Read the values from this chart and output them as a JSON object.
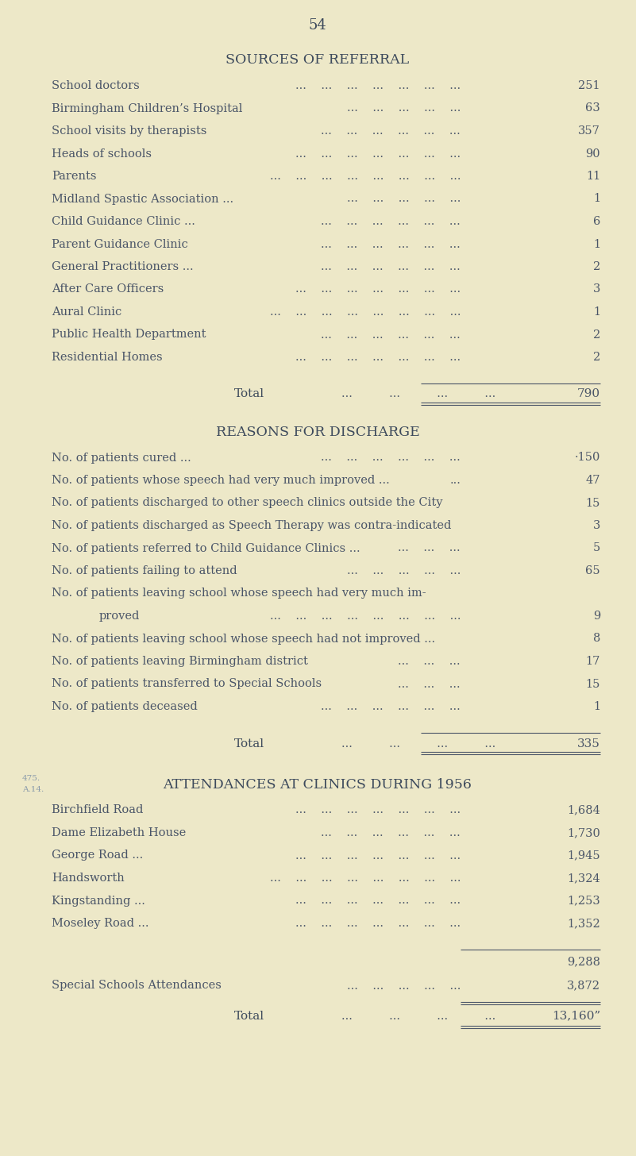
{
  "page_number": "54",
  "bg_color": "#EDE8C8",
  "text_color": "#4a5568",
  "title_color": "#3d4a5c",
  "section1_title": "SOURCES OF REFERRAL",
  "section1_rows": [
    {
      "label": "School doctors",
      "dots": "...    ...    ...    ...    ...    ...    ...",
      "value": "251"
    },
    {
      "label": "Birmingham Children’s Hospital",
      "dots": "...    ...    ...    ...    ...",
      "value": "63"
    },
    {
      "label": "School visits by therapists",
      "dots": "...    ...    ...    ...    ...    ...",
      "value": "357"
    },
    {
      "label": "Heads of schools",
      "dots": "...    ...    ...    ...    ...    ...    ...",
      "value": "90"
    },
    {
      "label": "Parents",
      "dots": "...    ...    ...    ...    ...    ...    ...    ...",
      "value": "11"
    },
    {
      "label": "Midland Spastic Association ...",
      "dots": "...    ...    ...    ...    ...",
      "value": "1"
    },
    {
      "label": "Child Guidance Clinic ...",
      "dots": "...    ...    ...    ...    ...    ...",
      "value": "6"
    },
    {
      "label": "Parent Guidance Clinic",
      "dots": "...    ...    ...    ...    ...    ...",
      "value": "1"
    },
    {
      "label": "General Practitioners ...",
      "dots": "...    ...    ...    ...    ...    ...",
      "value": "2"
    },
    {
      "label": "After Care Officers",
      "dots": "...    ...    ...    ...    ...    ...    ...",
      "value": "3"
    },
    {
      "label": "Aural Clinic",
      "dots": "...    ...    ...    ...    ...    ...    ...    ...",
      "value": "1"
    },
    {
      "label": "Public Health Department",
      "dots": "...    ...    ...    ...    ...    ...",
      "value": "2"
    },
    {
      "label": "Residential Homes",
      "dots": "...    ...    ...    ...    ...    ...    ...",
      "value": "2"
    }
  ],
  "section1_total": "790",
  "section2_title": "REASONS FOR DISCHARGE",
  "section2_rows": [
    {
      "label": "No. of patients cured ...",
      "dots": "...    ...    ...    ...    ...    ...",
      "value": "·150",
      "indent": 0
    },
    {
      "label": "No. of patients whose speech had very much improved ...",
      "dots": "...",
      "value": "47",
      "indent": 0
    },
    {
      "label": "No. of patients discharged to other speech clinics outside the City",
      "dots": "",
      "value": "15",
      "indent": 0
    },
    {
      "label": "No. of patients discharged as Speech Therapy was contra-indicated",
      "dots": "",
      "value": "3",
      "indent": 0
    },
    {
      "label": "No. of patients referred to Child Guidance Clinics ...",
      "dots": "...    ...    ...",
      "value": "5",
      "indent": 0
    },
    {
      "label": "No. of patients failing to attend",
      "dots": "...    ...    ...    ...    ...",
      "value": "65",
      "indent": 0
    },
    {
      "label": "No. of patients leaving school whose speech had very much im-",
      "dots": "",
      "value": "",
      "indent": 0
    },
    {
      "label": "proved",
      "dots": "...    ...    ...    ...    ...    ...    ...    ...",
      "value": "9",
      "indent": 1
    },
    {
      "label": "No. of patients leaving school whose speech had not improved ...",
      "dots": "",
      "value": "8",
      "indent": 0
    },
    {
      "label": "No. of patients leaving Birmingham district",
      "dots": "...    ...    ...",
      "value": "17",
      "indent": 0
    },
    {
      "label": "No. of patients transferred to Special Schools",
      "dots": "...    ...    ...",
      "value": "15",
      "indent": 0
    },
    {
      "label": "No. of patients deceased",
      "dots": "...    ...    ...    ...    ...    ...",
      "value": "1",
      "indent": 0
    }
  ],
  "section2_total": "335",
  "section3_title": "ATTENDANCES AT CLINICS DURING 1956",
  "section3_rows": [
    {
      "label": "Birchfield Road",
      "dots": "...    ...    ...    ...    ...    ...    ...",
      "value": "1,684"
    },
    {
      "label": "Dame Elizabeth House",
      "dots": "...    ...    ...    ...    ...    ...",
      "value": "1,730"
    },
    {
      "label": "George Road ...",
      "dots": "...    ...    ...    ...    ...    ...    ...",
      "value": "1,945"
    },
    {
      "label": "Handsworth",
      "dots": "...    ...    ...    ...    ...    ...    ...    ...",
      "value": "1,324"
    },
    {
      "label": "Kingstanding ...",
      "dots": "...    ...    ...    ...    ...    ...    ...",
      "value": "1,253"
    },
    {
      "label": "Moseley Road ...",
      "dots": "...    ...    ...    ...    ...    ...    ...",
      "value": "1,352"
    }
  ],
  "section3_subtotal": "9,288",
  "section3_special_label": "Special Schools Attendances",
  "section3_special_dots": "...    ...    ...    ...    ...",
  "section3_special_value": "3,872",
  "section3_total": "13,160”",
  "watermark1": "475.",
  "watermark2": "A.14.",
  "font_family": "serif"
}
